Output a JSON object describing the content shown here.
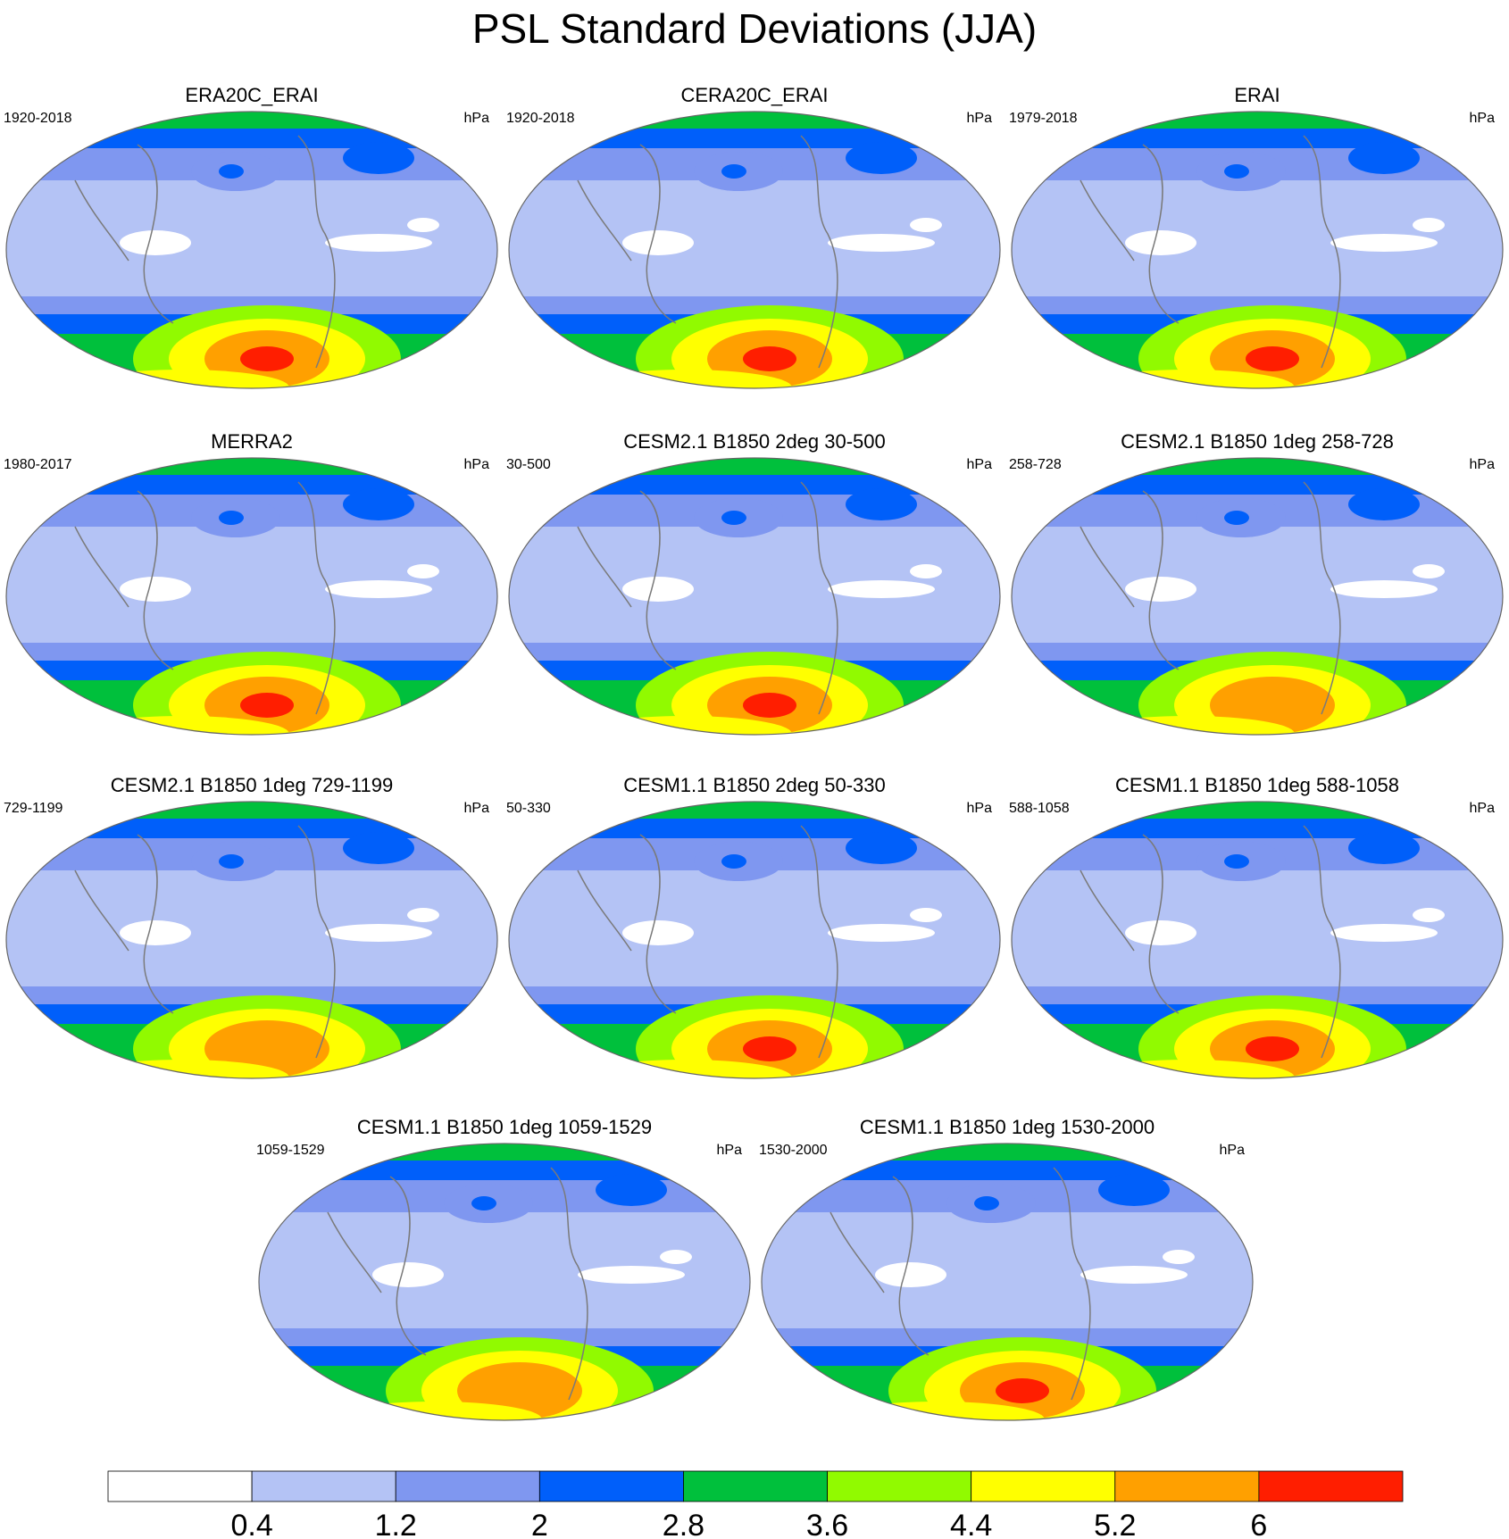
{
  "title": "PSL Standard Deviations (JJA)",
  "panels": [
    {
      "title": "ERA20C_ERAI",
      "left": "1920-2018",
      "right": "hPa",
      "max_level": 8
    },
    {
      "title": "CERA20C_ERAI",
      "left": "1920-2018",
      "right": "hPa",
      "max_level": 8
    },
    {
      "title": "ERAI",
      "left": "1979-2018",
      "right": "hPa",
      "max_level": 8
    },
    {
      "title": "MERRA2",
      "left": "1980-2017",
      "right": "hPa",
      "max_level": 8
    },
    {
      "title": "CESM2.1 B1850 2deg 30-500",
      "left": "30-500",
      "right": "hPa",
      "max_level": 8
    },
    {
      "title": "CESM2.1 B1850 1deg 258-728",
      "left": "258-728",
      "right": "hPa",
      "max_level": 7
    },
    {
      "title": "CESM2.1 B1850 1deg 729-1199",
      "left": "729-1199",
      "right": "hPa",
      "max_level": 7
    },
    {
      "title": "CESM1.1 B1850 2deg 50-330",
      "left": "50-330",
      "right": "hPa",
      "max_level": 8
    },
    {
      "title": "CESM1.1 B1850 1deg 588-1058",
      "left": "588-1058",
      "right": "hPa",
      "max_level": 8
    },
    {
      "title": "CESM1.1 B1850 1deg 1059-1529",
      "left": "1059-1529",
      "right": "hPa",
      "max_level": 7
    },
    {
      "title": "CESM1.1 B1850 1deg 1530-2000",
      "left": "1530-2000",
      "right": "hPa",
      "max_level": 8
    }
  ],
  "chart_data": {
    "type": "heatmap",
    "title": "PSL Standard Deviations (JJA)",
    "units": "hPa",
    "colorbar": {
      "levels": [
        0.4,
        1.2,
        2,
        2.8,
        3.6,
        4.4,
        5.2,
        6
      ],
      "tick_labels": [
        "0.4",
        "1.2",
        "2",
        "2.8",
        "3.6",
        "4.4",
        "5.2",
        "6"
      ],
      "colors": [
        "#ffffff",
        "#b4c3f5",
        "#7f97f0",
        "#005ffa",
        "#00c03c",
        "#91fa00",
        "#ffff00",
        "#ffa000",
        "#ff1e00"
      ]
    }
  }
}
